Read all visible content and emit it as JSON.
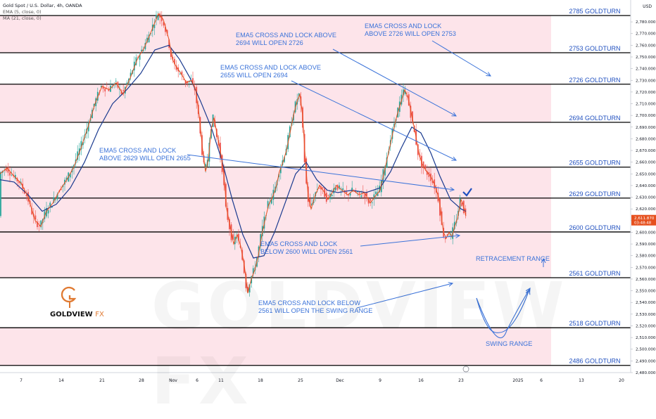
{
  "header": {
    "symbol_line": "Gold Spot / U.S. Dollar, 4h, OANDA",
    "ema_line": "EMA (5, close, 0)",
    "ma_line": "MA (21, close, 0)",
    "currency": "USD"
  },
  "watermark": "GOLDVIEW FX",
  "logo": {
    "name": "GOLDVIEW",
    "suffix": "FX",
    "accent": "#e07a32"
  },
  "colors": {
    "band": "#fde4ea",
    "level_line": "#000000",
    "ema": "#e6501e",
    "ma": "#1a3a8f",
    "annotation": "#3b73d9",
    "candle_up": "#26a69a",
    "candle_down": "#ef5350"
  },
  "chart_data": {
    "type": "candlestick",
    "y_range": [
      2480,
      2790
    ],
    "y_ticks": [
      "2,780.000",
      "2,770.000",
      "2,760.000",
      "2,750.000",
      "2,740.000",
      "2,730.000",
      "2,720.000",
      "2,710.000",
      "2,700.000",
      "2,690.000",
      "2,680.000",
      "2,670.000",
      "2,660.000",
      "2,650.000",
      "2,640.000",
      "2,630.000",
      "2,620.000",
      "2,610.000",
      "2,600.000",
      "2,590.000",
      "2,580.000",
      "2,570.000",
      "2,560.000",
      "2,550.000",
      "2,540.000",
      "2,530.000",
      "2,520.000",
      "2,510.000",
      "2,500.000",
      "2,490.000",
      "2,480.000"
    ],
    "x_labels": [
      "7",
      "14",
      "21",
      "28",
      "Nov",
      "6",
      "11",
      "18",
      "25",
      "Dec",
      "9",
      "16",
      "23",
      "2025",
      "6",
      "13",
      "20"
    ],
    "levels": [
      {
        "label": "2785 GOLDTURN",
        "value": 2785.384,
        "tag": "2,785.384"
      },
      {
        "label": "2753 GOLDTURN",
        "value": 2753.589,
        "tag": "2,753.589"
      },
      {
        "label": "2726 GOLDTURN",
        "value": 2726.685,
        "tag": "2,726.685"
      },
      {
        "label": "2694 GOLDTURN",
        "value": 2694.073,
        "tag": "2,694.073"
      },
      {
        "label": "2655 GOLDTURN",
        "value": 2655.756,
        "tag": "2,655.756"
      },
      {
        "label": "2629 GOLDTURN",
        "value": 2629.259,
        "tag": "2,629.259"
      },
      {
        "label": "2600 GOLDTURN",
        "value": 2600.317,
        "tag": "2,600.317"
      },
      {
        "label": "2561 GOLDTURN",
        "value": 2561.184,
        "tag": "2,561.184"
      },
      {
        "label": "2518 GOLDTURN",
        "value": 2518.382,
        "tag": "2,518.382"
      },
      {
        "label": "2486 GOLDTURN",
        "value": 2486.178,
        "tag": "2,486.178"
      }
    ],
    "bands": [
      [
        2753.589,
        2785.384
      ],
      [
        2694.073,
        2726.685
      ],
      [
        2600.317,
        2655.756
      ],
      [
        2561.184,
        2600.317
      ],
      [
        2486.178,
        2518.382
      ]
    ],
    "current_price": {
      "value": 2611.87,
      "tag": "2,611.870",
      "countdown": "03:48:48"
    },
    "annotations": [
      {
        "lines": [
          "EMA5 CROSS AND LOCK ABOVE",
          "2694 WILL OPEN 2726"
        ]
      },
      {
        "lines": [
          "EMA5 CROSS AND LOCK",
          "ABOVE 2726 WILL OPEN 2753"
        ]
      },
      {
        "lines": [
          "EMA5 CROSS AND LOCK ABOVE",
          "2655 WILL OPEN 2694"
        ]
      },
      {
        "lines": [
          "EMA5 CROSS AND LOCK",
          "ABOVE 2629 WILL OPEN 2655"
        ]
      },
      {
        "lines": [
          "EMA5 CROSS AND LOCK",
          "BELOW 2600 WILL OPEN 2561"
        ]
      },
      {
        "lines": [
          "EMA5 CROSS AND LOCK BELOW",
          "2561 WILL OPEN THE SWING RANGE"
        ]
      },
      {
        "lines": [
          "RETRACEMENT RANGE"
        ]
      },
      {
        "lines": [
          "SWING RANGE"
        ]
      }
    ],
    "price_path": [
      [
        0,
        2650
      ],
      [
        10,
        2655
      ],
      [
        20,
        2648
      ],
      [
        30,
        2642
      ],
      [
        40,
        2630
      ],
      [
        50,
        2610
      ],
      [
        58,
        2605
      ],
      [
        66,
        2618
      ],
      [
        75,
        2625
      ],
      [
        85,
        2636
      ],
      [
        95,
        2645
      ],
      [
        105,
        2656
      ],
      [
        115,
        2672
      ],
      [
        125,
        2690
      ],
      [
        135,
        2710
      ],
      [
        145,
        2725
      ],
      [
        155,
        2722
      ],
      [
        165,
        2728
      ],
      [
        175,
        2718
      ],
      [
        185,
        2732
      ],
      [
        195,
        2748
      ],
      [
        205,
        2758
      ],
      [
        215,
        2772
      ],
      [
        225,
        2787
      ],
      [
        232,
        2782
      ],
      [
        240,
        2765
      ],
      [
        245,
        2748
      ],
      [
        250,
        2742
      ],
      [
        258,
        2735
      ],
      [
        265,
        2728
      ],
      [
        272,
        2730
      ],
      [
        278,
        2722
      ],
      [
        283,
        2700
      ],
      [
        288,
        2670
      ],
      [
        292,
        2652
      ],
      [
        296,
        2662
      ],
      [
        300,
        2688
      ],
      [
        304,
        2698
      ],
      [
        308,
        2685
      ],
      [
        313,
        2670
      ],
      [
        318,
        2650
      ],
      [
        322,
        2620
      ],
      [
        327,
        2605
      ],
      [
        332,
        2590
      ],
      [
        337,
        2598
      ],
      [
        342,
        2588
      ],
      [
        347,
        2572
      ],
      [
        352,
        2548
      ],
      [
        357,
        2560
      ],
      [
        362,
        2568
      ],
      [
        367,
        2580
      ],
      [
        372,
        2598
      ],
      [
        377,
        2612
      ],
      [
        382,
        2624
      ],
      [
        387,
        2630
      ],
      [
        392,
        2638
      ],
      [
        397,
        2652
      ],
      [
        402,
        2660
      ],
      [
        407,
        2670
      ],
      [
        412,
        2685
      ],
      [
        417,
        2700
      ],
      [
        422,
        2712
      ],
      [
        426,
        2718
      ],
      [
        430,
        2700
      ],
      [
        434,
        2660
      ],
      [
        438,
        2630
      ],
      [
        442,
        2620
      ],
      [
        448,
        2632
      ],
      [
        454,
        2640
      ],
      [
        460,
        2635
      ],
      [
        466,
        2628
      ],
      [
        472,
        2634
      ],
      [
        478,
        2640
      ],
      [
        486,
        2636
      ],
      [
        494,
        2632
      ],
      [
        502,
        2636
      ],
      [
        510,
        2632
      ],
      [
        518,
        2634
      ],
      [
        526,
        2625
      ],
      [
        532,
        2630
      ],
      [
        540,
        2636
      ],
      [
        546,
        2652
      ],
      [
        552,
        2668
      ],
      [
        558,
        2685
      ],
      [
        564,
        2700
      ],
      [
        570,
        2712
      ],
      [
        575,
        2722
      ],
      [
        580,
        2715
      ],
      [
        585,
        2700
      ],
      [
        590,
        2685
      ],
      [
        595,
        2668
      ],
      [
        600,
        2658
      ],
      [
        606,
        2652
      ],
      [
        612,
        2648
      ],
      [
        618,
        2640
      ],
      [
        624,
        2628
      ],
      [
        630,
        2600
      ],
      [
        634,
        2595
      ],
      [
        638,
        2600
      ],
      [
        642,
        2596
      ],
      [
        646,
        2605
      ],
      [
        650,
        2612
      ],
      [
        655,
        2628
      ],
      [
        658,
        2624
      ],
      [
        662,
        2614
      ]
    ],
    "ma_path": [
      [
        0,
        2645
      ],
      [
        20,
        2643
      ],
      [
        40,
        2632
      ],
      [
        60,
        2618
      ],
      [
        80,
        2624
      ],
      [
        100,
        2638
      ],
      [
        120,
        2660
      ],
      [
        140,
        2688
      ],
      [
        160,
        2710
      ],
      [
        180,
        2722
      ],
      [
        200,
        2736
      ],
      [
        220,
        2756
      ],
      [
        240,
        2760
      ],
      [
        255,
        2748
      ],
      [
        270,
        2732
      ],
      [
        285,
        2712
      ],
      [
        300,
        2690
      ],
      [
        315,
        2662
      ],
      [
        330,
        2628
      ],
      [
        345,
        2598
      ],
      [
        360,
        2578
      ],
      [
        375,
        2580
      ],
      [
        390,
        2600
      ],
      [
        405,
        2625
      ],
      [
        420,
        2650
      ],
      [
        435,
        2660
      ],
      [
        450,
        2645
      ],
      [
        465,
        2636
      ],
      [
        480,
        2634
      ],
      [
        500,
        2636
      ],
      [
        520,
        2634
      ],
      [
        540,
        2638
      ],
      [
        555,
        2652
      ],
      [
        570,
        2672
      ],
      [
        585,
        2690
      ],
      [
        598,
        2685
      ],
      [
        612,
        2668
      ],
      [
        625,
        2648
      ],
      [
        640,
        2628
      ],
      [
        655,
        2620
      ],
      [
        662,
        2618
      ]
    ]
  }
}
